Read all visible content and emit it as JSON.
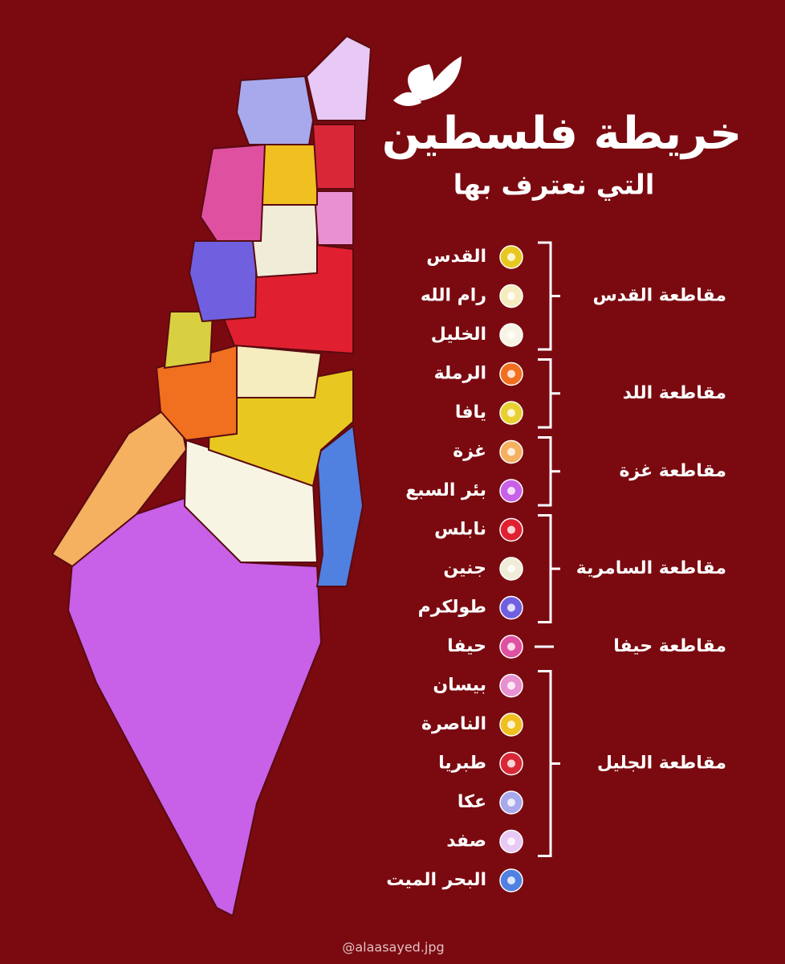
{
  "title": "خريطة فلسطين",
  "subtitle": "التي نعترف بها",
  "legend": {
    "groups": [
      {
        "name": "مقاطعة القدس",
        "items": [
          {
            "label": "القدس",
            "color": "#e8c820"
          },
          {
            "label": "رام الله",
            "color": "#f5ecc0"
          },
          {
            "label": "الخليل",
            "color": "#f8f4e4"
          }
        ]
      },
      {
        "name": "مقاطعة اللد",
        "items": [
          {
            "label": "الرملة",
            "color": "#f07020"
          },
          {
            "label": "يافا",
            "color": "#e8d030"
          }
        ]
      },
      {
        "name": "مقاطعة غزة",
        "items": [
          {
            "label": "غزة",
            "color": "#f5b060"
          },
          {
            "label": "بئر السبع",
            "color": "#c860e8"
          }
        ]
      },
      {
        "name": "مقاطعة السامرية",
        "items": [
          {
            "label": "نابلس",
            "color": "#e02030"
          },
          {
            "label": "جنين",
            "color": "#f0ecd8"
          },
          {
            "label": "طولكرم",
            "color": "#7060e0"
          }
        ]
      },
      {
        "name": "مقاطعة حيفا",
        "items": [
          {
            "label": "حيفا",
            "color": "#e050a0"
          }
        ]
      },
      {
        "name": "مقاطعة الجليل",
        "items": [
          {
            "label": "بيسان",
            "color": "#e890d0"
          },
          {
            "label": "الناصرة",
            "color": "#f0c020"
          },
          {
            "label": "طبريا",
            "color": "#d82838"
          },
          {
            "label": "عكا",
            "color": "#a8a8ec"
          },
          {
            "label": "صفد",
            "color": "#e8c8f4"
          }
        ]
      }
    ],
    "others": [
      {
        "label": "البحر الميت",
        "color": "#5080e0"
      }
    ]
  },
  "credit": "@alaasayed.jpg"
}
